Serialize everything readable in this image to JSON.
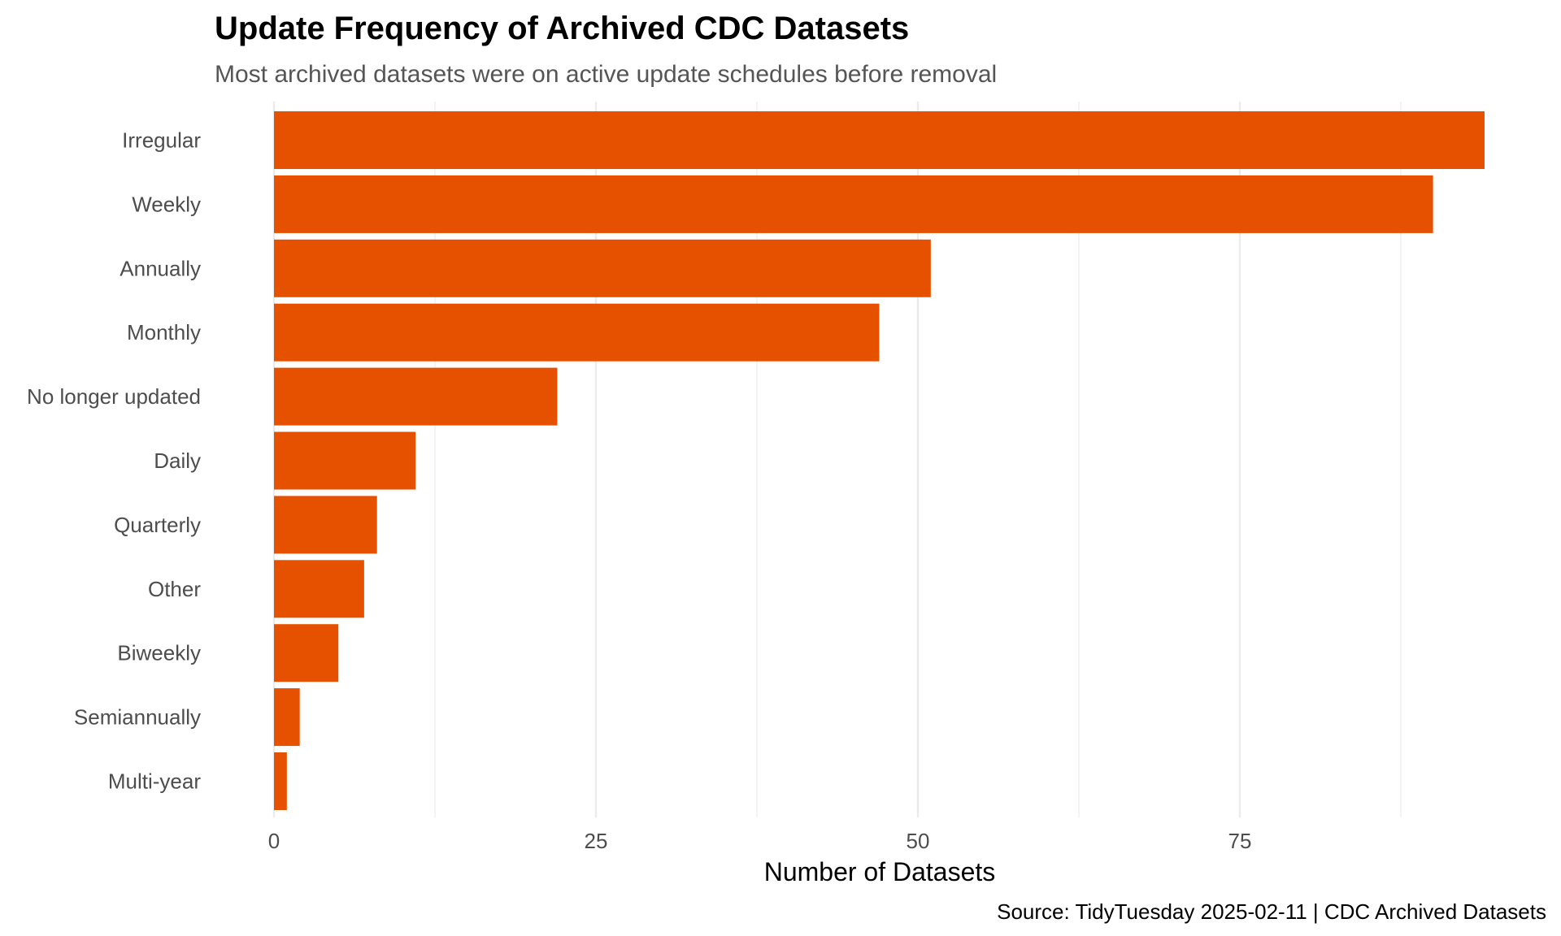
{
  "chart_data": {
    "type": "bar",
    "orientation": "horizontal",
    "title": "Update Frequency of Archived CDC Datasets",
    "subtitle": "Most archived datasets were on active update schedules before removal",
    "xlabel": "Number of Datasets",
    "ylabel": "",
    "caption": "Source: TidyTuesday 2025-02-11 | CDC Archived Datasets",
    "categories": [
      "Irregular",
      "Weekly",
      "Annually",
      "Monthly",
      "No longer updated",
      "Daily",
      "Quarterly",
      "Other",
      "Biweekly",
      "Semiannually",
      "Multi-year"
    ],
    "values": [
      94,
      90,
      51,
      47,
      22,
      11,
      8,
      7,
      5,
      2,
      1
    ],
    "xlim": [
      0,
      98.7
    ],
    "xticks": [
      0,
      25,
      50,
      75
    ],
    "xtick_labels": [
      "0",
      "25",
      "50",
      "75"
    ],
    "minor_xticks": [
      12.5,
      37.5,
      62.5,
      87.5
    ],
    "grid": true,
    "legend": "none",
    "bar_color": "#E65100"
  }
}
